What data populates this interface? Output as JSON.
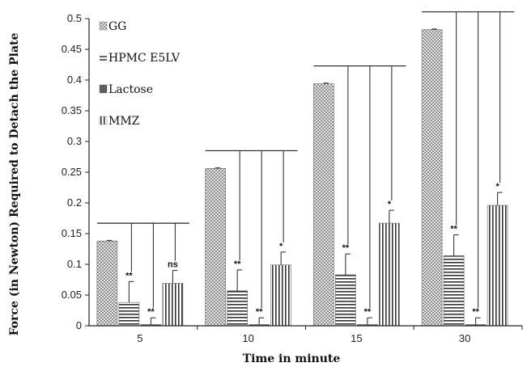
{
  "chart_data": {
    "type": "bar",
    "title": "",
    "xlabel": "Time in minute",
    "ylabel": "Force (in Newton) Required to Detach the Plate",
    "categories": [
      "5",
      "10",
      "15",
      "30"
    ],
    "ylim": [
      0,
      0.5
    ],
    "yticks": [
      "0",
      "0.05",
      "0.1",
      "0.15",
      "0.2",
      "0.25",
      "0.3",
      "0.35",
      "0.4",
      "0.45",
      "0.5"
    ],
    "legend_position": "top-left",
    "grid": false,
    "series": [
      {
        "name": "GG",
        "pattern": "dots",
        "values": [
          0.138,
          0.256,
          0.394,
          0.482
        ],
        "errors": [
          0.001,
          0.001,
          0.001,
          0.001
        ],
        "significance": [
          "",
          "",
          "",
          ""
        ]
      },
      {
        "name": "HPMC E5LV",
        "pattern": "horizontal-lines",
        "values": [
          0.038,
          0.057,
          0.083,
          0.114
        ],
        "errors": [
          0.034,
          0.034,
          0.034,
          0.034
        ],
        "significance": [
          "**",
          "**",
          "**",
          "**"
        ]
      },
      {
        "name": "Lactose",
        "pattern": "dark-fill",
        "values": [
          0.002,
          0.002,
          0.002,
          0.002
        ],
        "errors": [
          0.011,
          0.011,
          0.011,
          0.011
        ],
        "significance": [
          "**",
          "**",
          "**",
          "**"
        ]
      },
      {
        "name": "MMZ",
        "pattern": "vertical-lines",
        "values": [
          0.069,
          0.099,
          0.167,
          0.196
        ],
        "errors": [
          0.021,
          0.021,
          0.021,
          0.021
        ],
        "significance": [
          "ns",
          "*",
          "*",
          "*"
        ]
      }
    ]
  },
  "colors": {
    "axis": "#222222",
    "dark_fill": "#555555",
    "pattern_ink": "#444444"
  }
}
